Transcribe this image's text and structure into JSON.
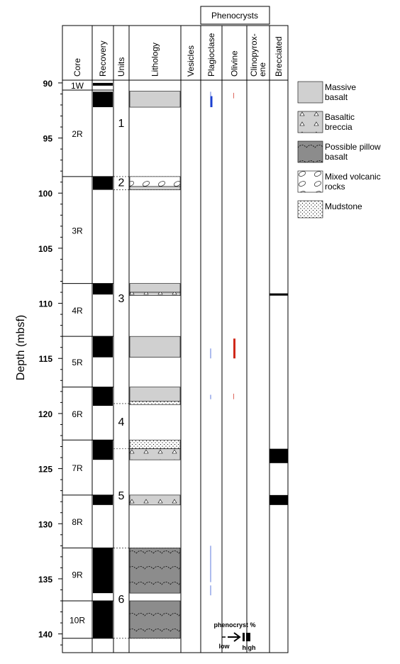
{
  "group_header": "Phenocrysts",
  "depth_axis": {
    "label": "Depth (mbsf)",
    "lim": [
      89.75,
      141.7
    ],
    "ticks": [
      90,
      95,
      100,
      105,
      110,
      115,
      120,
      125,
      130,
      135,
      140
    ],
    "minor_ticks": [
      91,
      92,
      93,
      94,
      96,
      97,
      98,
      99,
      101,
      102,
      103,
      104,
      106,
      107,
      108,
      109,
      111,
      112,
      113,
      114,
      116,
      117,
      118,
      119,
      121,
      122,
      123,
      124,
      126,
      127,
      128,
      129,
      131,
      132,
      133,
      134,
      136,
      137,
      138,
      139,
      141
    ]
  },
  "columns": [
    {
      "header": [
        "Core"
      ]
    },
    {
      "header": [
        "Recovery"
      ]
    },
    {
      "header": [
        "Units"
      ]
    },
    {
      "header": [
        "Lithology"
      ]
    },
    {
      "header": [
        "Vesicles"
      ]
    },
    {
      "header": [
        "Plagioclase"
      ],
      "color": "#1a3fd0",
      "intervals": [
        {
          "top": 90.8,
          "bottom": 91.2,
          "level": "low"
        },
        {
          "top": 91.2,
          "bottom": 92.2,
          "level": "high"
        },
        {
          "top": 114.1,
          "bottom": 115.0,
          "level": "low"
        },
        {
          "top": 118.3,
          "bottom": 118.7,
          "level": "low"
        },
        {
          "top": 132.0,
          "bottom": 135.3,
          "level": "low"
        },
        {
          "top": 135.6,
          "bottom": 136.5,
          "level": "low"
        }
      ]
    },
    {
      "header": [
        "Olivine"
      ],
      "color": "#d0281a",
      "intervals": [
        {
          "top": 90.9,
          "bottom": 91.4,
          "level": "low"
        },
        {
          "top": 113.2,
          "bottom": 115.0,
          "level": "high"
        },
        {
          "top": 118.2,
          "bottom": 118.7,
          "level": "low"
        }
      ]
    },
    {
      "header": [
        "Clinopyrox-",
        "ene"
      ]
    },
    {
      "header": [
        "Brecciated"
      ],
      "color": "#000000",
      "intervals": [
        {
          "top": 109.1,
          "bottom": 109.3,
          "level": "high"
        },
        {
          "top": 123.2,
          "bottom": 124.5,
          "level": "high"
        },
        {
          "top": 127.4,
          "bottom": 128.3,
          "level": "high"
        }
      ]
    }
  ],
  "cores": [
    {
      "name": "1W",
      "top": 89.75,
      "bottom": 90.65
    },
    {
      "name": "2R",
      "top": 90.65,
      "bottom": 98.5
    },
    {
      "name": "3R",
      "top": 98.5,
      "bottom": 108.2
    },
    {
      "name": "4R",
      "top": 108.2,
      "bottom": 113.0
    },
    {
      "name": "5R",
      "top": 113.0,
      "bottom": 117.6
    },
    {
      "name": "6R",
      "top": 117.6,
      "bottom": 122.4
    },
    {
      "name": "7R",
      "top": 122.4,
      "bottom": 127.4
    },
    {
      "name": "8R",
      "top": 127.4,
      "bottom": 132.2
    },
    {
      "name": "9R",
      "top": 132.2,
      "bottom": 137.0
    },
    {
      "name": "10R",
      "top": 137.0,
      "bottom": 140.4
    }
  ],
  "recovery": [
    [
      90.0,
      90.25
    ],
    [
      90.8,
      92.2
    ],
    [
      98.5,
      99.7
    ],
    [
      108.2,
      109.2
    ],
    [
      113.0,
      114.9
    ],
    [
      117.6,
      119.3
    ],
    [
      122.4,
      124.2
    ],
    [
      127.4,
      128.3
    ],
    [
      132.2,
      136.3
    ],
    [
      137.0,
      140.4
    ]
  ],
  "units": {
    "labels": [
      {
        "name": "1",
        "depth": 93.6
      },
      {
        "name": "2",
        "depth": 99.0
      },
      {
        "name": "3",
        "depth": 109.5
      },
      {
        "name": "4",
        "depth": 120.7
      },
      {
        "name": "5",
        "depth": 127.4
      },
      {
        "name": "6",
        "depth": 136.8
      }
    ],
    "boundaries": [
      98.5,
      99.7,
      119.1,
      123.2,
      132.2,
      140.4
    ]
  },
  "lithology": [
    {
      "top": 90.75,
      "bottom": 92.2,
      "pattern": 0
    },
    {
      "top": 98.5,
      "bottom": 99.4,
      "pattern": 3
    },
    {
      "top": 99.4,
      "bottom": 99.7,
      "pattern": 0
    },
    {
      "top": 108.2,
      "bottom": 109.0,
      "pattern": 0
    },
    {
      "top": 109.0,
      "bottom": 109.3,
      "pattern": 1
    },
    {
      "top": 113.0,
      "bottom": 114.9,
      "pattern": 0
    },
    {
      "top": 117.6,
      "bottom": 118.9,
      "pattern": 0
    },
    {
      "top": 118.9,
      "bottom": 119.2,
      "pattern": 4
    },
    {
      "top": 122.4,
      "bottom": 123.2,
      "pattern": 4
    },
    {
      "top": 123.2,
      "bottom": 124.2,
      "pattern": 1
    },
    {
      "top": 127.4,
      "bottom": 128.3,
      "pattern": 1
    },
    {
      "top": 132.2,
      "bottom": 136.3,
      "pattern": 2
    },
    {
      "top": 137.0,
      "bottom": 140.4,
      "pattern": 2
    }
  ],
  "legend": [
    {
      "label": [
        "Massive",
        "basalt"
      ]
    },
    {
      "label": [
        "Basaltic",
        "breccia"
      ]
    },
    {
      "label": [
        "Possible pillow",
        "basalt"
      ]
    },
    {
      "label": [
        "Mixed volcanic",
        "rocks"
      ]
    },
    {
      "label": [
        "Mudstone"
      ]
    }
  ],
  "key": {
    "title": "phenocryst %",
    "low": "low",
    "high": "high"
  }
}
